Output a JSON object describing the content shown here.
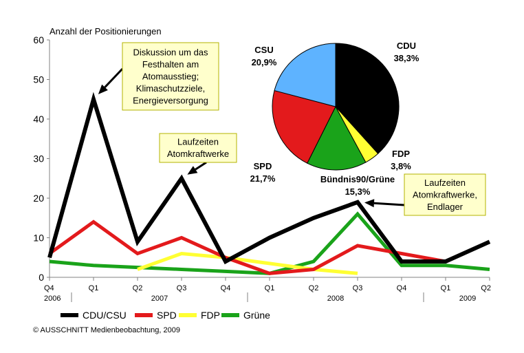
{
  "chart_data": [
    {
      "type": "line",
      "ylabel": "Anzahl der Positionierungen",
      "ylim": [
        0,
        60
      ],
      "yticks": [
        0,
        10,
        20,
        30,
        40,
        50,
        60
      ],
      "x": [
        "Q4 2006",
        "Q1 2007",
        "Q2 2007",
        "Q3 2007",
        "Q4 2007",
        "Q1 2008",
        "Q2 2008",
        "Q3 2008",
        "Q4 2008",
        "Q1 2009",
        "Q2 2009"
      ],
      "quarter_labels": [
        "Q4",
        "Q1",
        "Q2",
        "Q3",
        "Q4",
        "Q1",
        "Q2",
        "Q3",
        "Q4",
        "Q1",
        "Q2"
      ],
      "year_labels": [
        "2006",
        "2007",
        "2008",
        "2009"
      ],
      "grid": false,
      "legend_position": "bottom-left",
      "series": [
        {
          "name": "CDU/CSU",
          "color": "#000000",
          "values": [
            5,
            45,
            9,
            25,
            4,
            10,
            15,
            19,
            4,
            4,
            9
          ]
        },
        {
          "name": "SPD",
          "color": "#e31a1c",
          "values": [
            6,
            14,
            6,
            10,
            5,
            1,
            2,
            8,
            6,
            4,
            null
          ]
        },
        {
          "name": "FDP",
          "color": "#ffff33",
          "values": [
            null,
            null,
            2,
            6,
            5,
            3.5,
            2,
            1,
            null,
            null,
            null
          ]
        },
        {
          "name": "Grüne",
          "color": "#1aa31a",
          "values": [
            4,
            3,
            2.5,
            2,
            1.5,
            1,
            4,
            16,
            3,
            3,
            2
          ]
        }
      ],
      "annotations": [
        {
          "lines": [
            "Diskussion um das",
            "Festhalten am",
            "Atomausstieg;",
            "Klimaschutzziele,",
            "Energieversorgung"
          ],
          "x": "Q1 2007",
          "y": 45
        },
        {
          "lines": [
            "Laufzeiten",
            "Atomkraftwerke"
          ],
          "x": "Q3 2007",
          "y": 25
        },
        {
          "lines": [
            "Laufzeiten",
            "Atomkraftwerke,",
            "Endlager"
          ],
          "x": "Q3 2008",
          "y": 19
        }
      ]
    },
    {
      "type": "pie",
      "slices": [
        {
          "name": "CDU",
          "value": 38.3,
          "label": "38,3%",
          "color": "#000000"
        },
        {
          "name": "FDP",
          "value": 3.8,
          "label": "3,8%",
          "color": "#ffff33"
        },
        {
          "name": "Bündnis90/Grüne",
          "value": 15.3,
          "label": "15,3%",
          "color": "#1aa31a"
        },
        {
          "name": "SPD",
          "value": 21.7,
          "label": "21,7%",
          "color": "#e31a1c"
        },
        {
          "name": "CSU",
          "value": 20.9,
          "label": "20,9%",
          "color": "#5eb3ff"
        }
      ]
    }
  ],
  "footer": {
    "copyright": "© AUSSCHNITT Medienbeobachtung, 2009"
  },
  "colors": {
    "annotation_fill": "#ffffcc",
    "annotation_border": "#b3b300"
  }
}
